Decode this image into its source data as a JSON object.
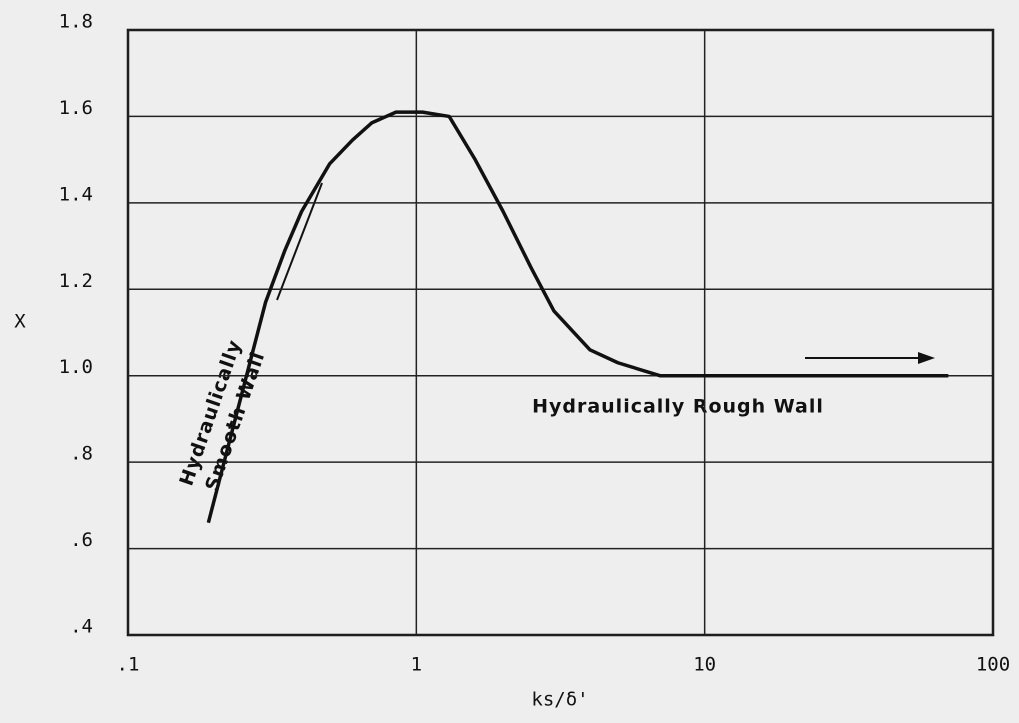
{
  "chart_data": {
    "type": "line",
    "ylabel": "X",
    "xlabel": "ks/δ'",
    "x": [
      0.19,
      0.3,
      0.35,
      0.4,
      0.5,
      0.6,
      0.7,
      0.85,
      1.05,
      1.3,
      1.6,
      2,
      2.5,
      3,
      4,
      5,
      7,
      10,
      20,
      70
    ],
    "series": [
      {
        "name": null,
        "color": "#111111",
        "values": [
          0.66,
          1.17,
          1.29,
          1.38,
          1.49,
          1.545,
          1.585,
          1.61,
          1.61,
          1.6,
          1.5,
          1.38,
          1.25,
          1.15,
          1.06,
          1.03,
          1.0,
          1.0,
          1.0,
          1.0
        ]
      }
    ],
    "xlim": [
      0.1,
      100
    ],
    "xscale": "log",
    "xticks": [
      {
        "value": 0.1,
        "label": ".1"
      },
      1,
      10,
      100
    ],
    "ylim": [
      0.4,
      1.8
    ],
    "yticks": [
      {
        "value": 0.4,
        "label": ".4"
      },
      {
        "value": 0.6,
        "label": ".6"
      },
      {
        "value": 0.8,
        "label": ".8"
      },
      {
        "value": 1.0,
        "label": "1.0"
      },
      1.2,
      1.4,
      1.6,
      1.8
    ],
    "grid": true,
    "annotations": [
      "Hydraulically",
      "Smooth Wall",
      "Hydraulically Rough Wall"
    ]
  }
}
